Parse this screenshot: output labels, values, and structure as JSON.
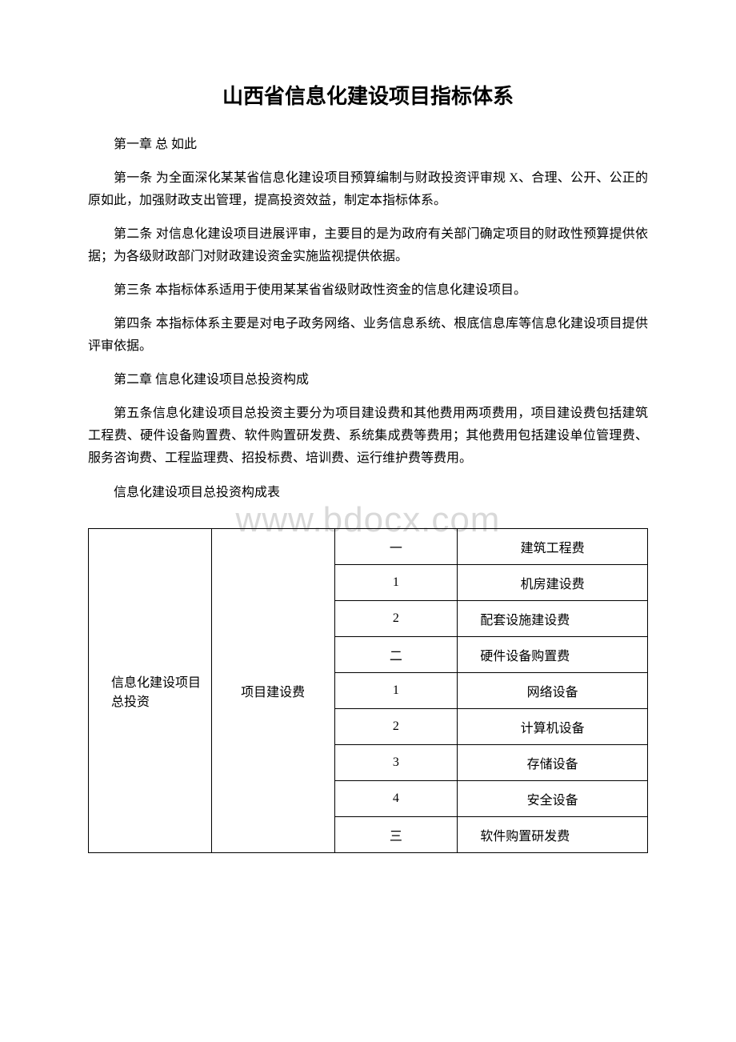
{
  "watermark": "www.bdocx.com",
  "title": "山西省信息化建设项目指标体系",
  "paragraphs": {
    "chapter1": "第一章 总 如此",
    "article1": "第一条 为全面深化某某省信息化建设项目预算编制与财政投资评审规 X、合理、公开、公正的原如此，加强财政支出管理，提高投资效益，制定本指标体系。",
    "article2": "第二条  对信息化建设项目进展评审，主要目的是为政府有关部门确定项目的财政性预算提供依据；为各级财政部门对财政建设资金实施监视提供依据。",
    "article3": "第三条    本指标体系适用于使用某某省省级财政性资金的信息化建设项目。",
    "article4": "第四条    本指标体系主要是对电子政务网络、业务信息系统、根底信息库等信息化建设项目提供评审依据。",
    "chapter2": "第二章 信息化建设项目总投资构成",
    "article5": "第五条信息化建设项目总投资主要分为项目建设费和其他费用两项费用，项目建设费包括建筑工程费、硬件设备购置费、软件购置研发费、系统集成费等费用；其他费用包括建设单位管理费、服务咨询费、工程监理费、招投标费、培训费、运行维护费等费用。",
    "tableTitle": "信息化建设项目总投资构成表"
  },
  "table": {
    "col1": "信息化建设项目总投资",
    "col2": "项目建设费",
    "rows": [
      {
        "num": "一",
        "label": "建筑工程费",
        "centerLabel": true
      },
      {
        "num": "1",
        "label": "机房建设费",
        "centerLabel": true
      },
      {
        "num": "2",
        "label": "配套设施建设费",
        "centerLabel": false
      },
      {
        "num": "二",
        "label": "硬件设备购置费",
        "centerLabel": false
      },
      {
        "num": "1",
        "label": "网络设备",
        "centerLabel": true
      },
      {
        "num": "2",
        "label": "计算机设备",
        "centerLabel": true
      },
      {
        "num": "3",
        "label": "存储设备",
        "centerLabel": true
      },
      {
        "num": "4",
        "label": "安全设备",
        "centerLabel": true
      },
      {
        "num": "三",
        "label": "软件购置研发费",
        "centerLabel": false
      }
    ]
  }
}
